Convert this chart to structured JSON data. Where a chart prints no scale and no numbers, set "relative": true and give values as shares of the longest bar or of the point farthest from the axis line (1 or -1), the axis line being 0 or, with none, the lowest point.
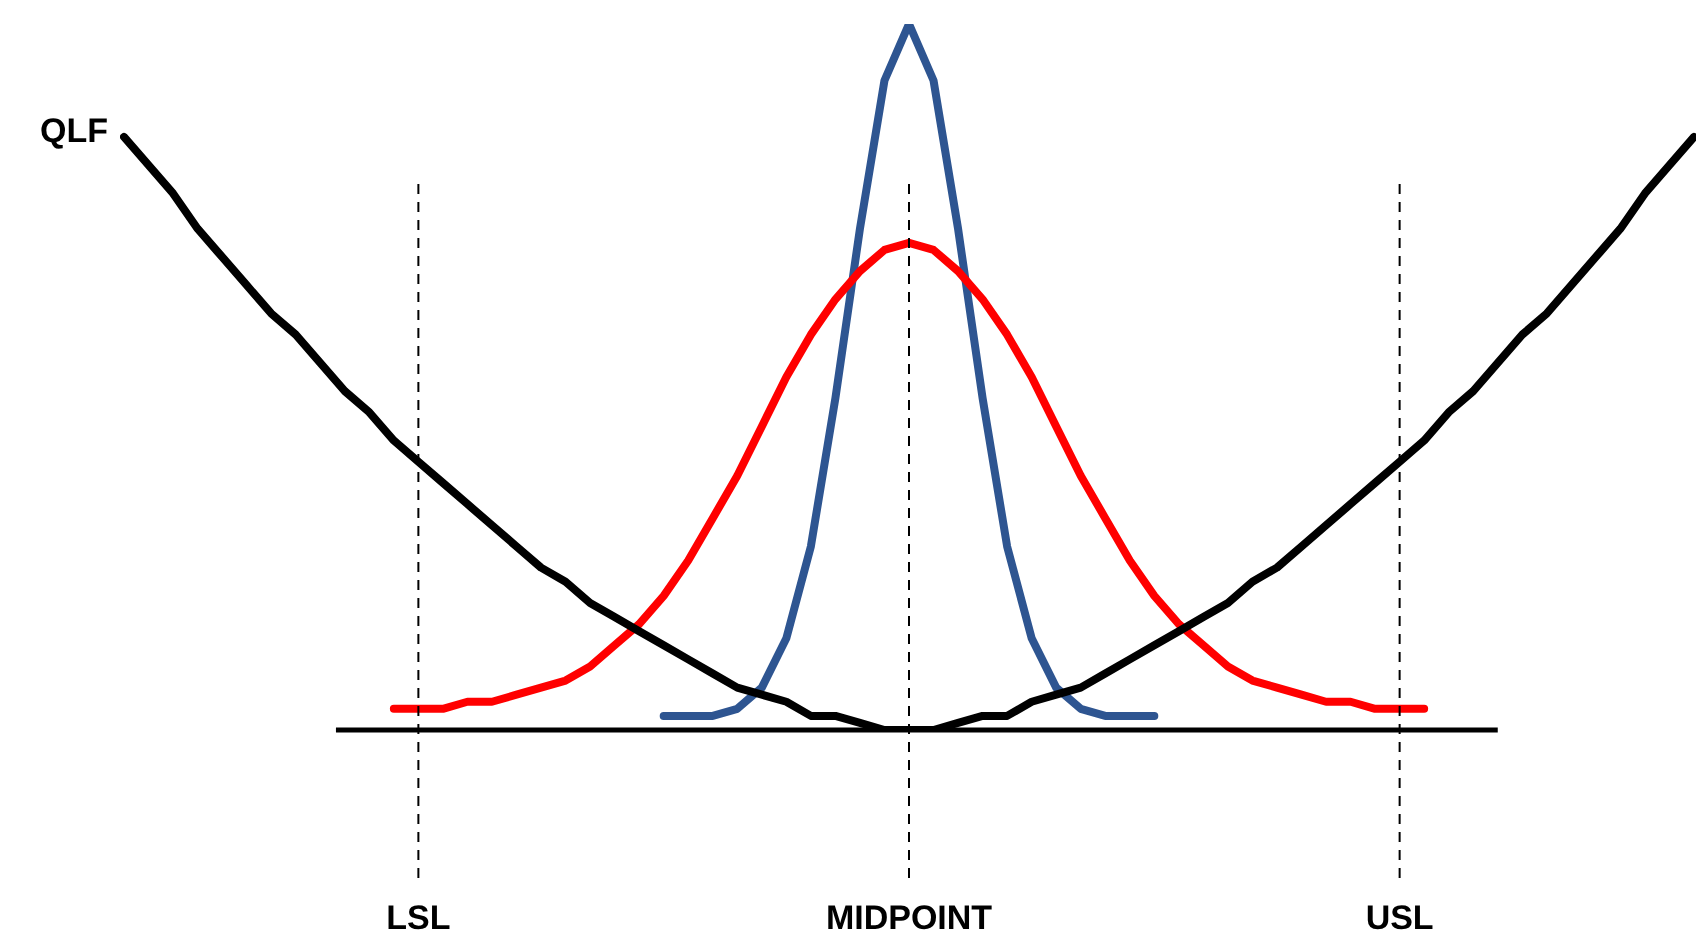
{
  "chart_data": {
    "type": "line",
    "relative": true,
    "tick_labels": "x",
    "legend": false,
    "marker": "none",
    "line_style": "solid",
    "categories": [
      null,
      null,
      null,
      null,
      null,
      null,
      null,
      null,
      null,
      null,
      null,
      null,
      "LSL",
      null,
      null,
      null,
      null,
      null,
      null,
      null,
      null,
      null,
      null,
      null,
      null,
      null,
      null,
      null,
      null,
      null,
      null,
      null,
      "MIDPOINT",
      null,
      null,
      null,
      null,
      null,
      null,
      null,
      null,
      null,
      null,
      null,
      null,
      null,
      null,
      null,
      null,
      null,
      null,
      null,
      "USL",
      null,
      null,
      null,
      null,
      null,
      null,
      null,
      null,
      null,
      null,
      null,
      null
    ],
    "series": [
      {
        "name": "QLF",
        "color": "#000000",
        "values": [
          0.84,
          0.8,
          0.76,
          0.71,
          0.67,
          0.63,
          0.59,
          0.56,
          0.52,
          0.48,
          0.45,
          0.41,
          0.38,
          0.35,
          0.32,
          0.29,
          0.26,
          0.23,
          0.21,
          0.18,
          0.16,
          0.14,
          0.12,
          0.1,
          0.08,
          0.06,
          0.05,
          0.04,
          0.02,
          0.02,
          0.01,
          0,
          0,
          0,
          0.01,
          0.02,
          0.02,
          0.04,
          0.05,
          0.06,
          0.08,
          0.1,
          0.12,
          0.14,
          0.16,
          0.18,
          0.21,
          0.23,
          0.26,
          0.29,
          0.32,
          0.35,
          0.38,
          0.41,
          0.45,
          0.48,
          0.52,
          0.56,
          0.59,
          0.63,
          0.67,
          0.71,
          0.76,
          0.8,
          0.84
        ]
      },
      {
        "color": "#ff0000",
        "values": [
          null,
          null,
          null,
          null,
          null,
          null,
          null,
          null,
          null,
          null,
          null,
          0.03,
          0.03,
          0.03,
          0.04,
          0.04,
          0.05,
          0.06,
          0.07,
          0.09,
          0.12,
          0.15,
          0.19,
          0.24,
          0.3,
          0.36,
          0.43,
          0.5,
          0.56,
          0.61,
          0.65,
          0.68,
          0.69,
          0.68,
          0.65,
          0.61,
          0.56,
          0.5,
          0.43,
          0.36,
          0.3,
          0.24,
          0.19,
          0.15,
          0.12,
          0.09,
          0.07,
          0.06,
          0.05,
          0.04,
          0.04,
          0.03,
          0.03,
          0.03,
          null,
          null,
          null,
          null,
          null,
          null,
          null,
          null,
          null,
          null,
          null
        ]
      },
      {
        "color": "#2e5591",
        "values": [
          null,
          null,
          null,
          null,
          null,
          null,
          null,
          null,
          null,
          null,
          null,
          null,
          null,
          null,
          null,
          null,
          null,
          null,
          null,
          null,
          null,
          null,
          0.02,
          0.02,
          0.02,
          0.03,
          0.06,
          0.13,
          0.26,
          0.47,
          0.71,
          0.92,
          1,
          0.92,
          0.71,
          0.47,
          0.26,
          0.13,
          0.06,
          0.03,
          0.02,
          0.02,
          0.02,
          null,
          null,
          null,
          null,
          null,
          null,
          null,
          null,
          null,
          null,
          null,
          null,
          null,
          null,
          null,
          null,
          null,
          null,
          null,
          null,
          null,
          null
        ]
      }
    ],
    "ref_lines": [
      {
        "axis": "x",
        "value": "LSL",
        "color": "#000000",
        "line_style": "dashed"
      },
      {
        "axis": "x",
        "value": "MIDPOINT",
        "color": "#000000",
        "line_style": "dashed"
      },
      {
        "axis": "x",
        "value": "USL",
        "color": "#000000",
        "line_style": "dashed"
      }
    ]
  }
}
